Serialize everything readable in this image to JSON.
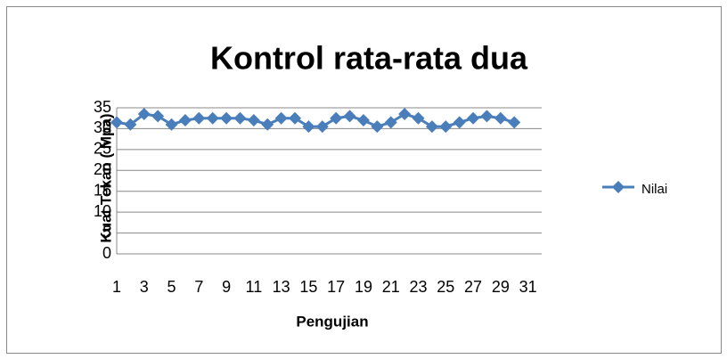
{
  "chart_data": {
    "type": "line",
    "title": "Kontrol rata-rata dua",
    "x_label": "Pengujian",
    "y_label": "Kuat Tekan ( Mpa)",
    "categories": [
      "1",
      null,
      "3",
      null,
      "5",
      null,
      "7",
      null,
      "9",
      null,
      "11",
      null,
      "13",
      null,
      "15",
      null,
      "17",
      null,
      "19",
      null,
      "21",
      null,
      "23",
      null,
      "25",
      null,
      "27",
      null,
      "29",
      null,
      "31"
    ],
    "series": [
      {
        "name": "Nilai",
        "color": "#4a7ebb",
        "values": [
          31.5,
          31,
          33.5,
          33,
          31,
          32,
          32.5,
          32.5,
          32.5,
          32.5,
          32,
          31,
          32.5,
          32.5,
          30.5,
          30.5,
          32.5,
          33,
          32,
          30.5,
          31.5,
          33.5,
          32.5,
          30.5,
          30.5,
          31.5,
          32.5,
          33,
          32.5,
          31.5,
          null
        ]
      }
    ],
    "ylim": [
      0,
      35
    ],
    "yticks": [
      0,
      5,
      10,
      15,
      20,
      25,
      30,
      35
    ],
    "grid": true,
    "legend": "right"
  }
}
